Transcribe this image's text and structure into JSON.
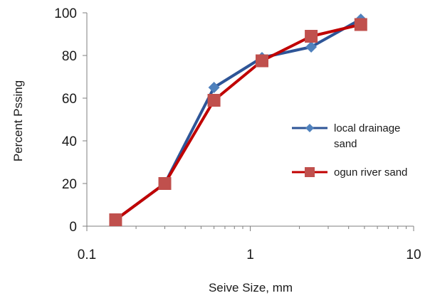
{
  "chart_data": {
    "type": "line",
    "title": "",
    "xlabel": "Seive Size, mm",
    "ylabel": "Percent Pssing",
    "xscale": "log",
    "xlim": [
      0.1,
      10
    ],
    "ylim": [
      0,
      100
    ],
    "x_ticks": [
      "0.1",
      "1",
      "10"
    ],
    "y_ticks": [
      "0",
      "20",
      "40",
      "60",
      "80",
      "100"
    ],
    "grid": false,
    "legend_position": "right",
    "series": [
      {
        "name": "local drainage sand",
        "color": "#2E5597",
        "marker": "diamond",
        "marker_color": "#4F81BD",
        "x": [
          0.15,
          0.3,
          0.6,
          1.18,
          2.36,
          4.75
        ],
        "y": [
          3,
          20,
          65,
          79,
          84,
          97
        ]
      },
      {
        "name": "ogun river sand",
        "color": "#C00000",
        "marker": "square",
        "marker_color": "#C0504D",
        "x": [
          0.15,
          0.3,
          0.6,
          1.18,
          2.36,
          4.75
        ],
        "y": [
          3,
          20,
          59,
          77.5,
          89,
          94.5
        ]
      }
    ]
  }
}
